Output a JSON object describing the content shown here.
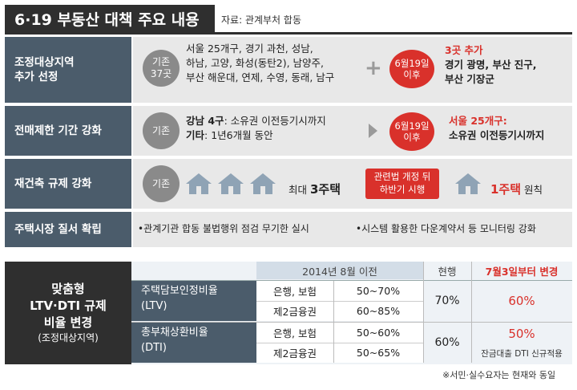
{
  "header": {
    "title": "6·19 부동산 대책 주요 내용",
    "source": "자료: 관계부처 합동"
  },
  "rows": {
    "r1": {
      "label_l1": "조정대상지역",
      "label_l2": "추가 선정",
      "existing_l1": "기존",
      "existing_l2": "37곳",
      "list_l1": "서울 25개구, 경기 과천, 성남,",
      "list_l2": "하남, 고양, 화성(동탄2), 남양주,",
      "list_l3": "부산 해운대, 연제, 수영, 동래, 남구",
      "plus": "+",
      "date_l1": "6월19일",
      "date_l2": "이후",
      "add_title": "3곳 추가",
      "add_l1": "경기 광명, 부산 진구,",
      "add_l2": "부산 기장군"
    },
    "r2": {
      "label": "전매제한 기간 강화",
      "existing": "기존",
      "line1_a": "강남 4구",
      "line1_b": ": 소유권 이전등기시까지",
      "line2_a": "기타",
      "line2_b": ": 1년6개월 동안",
      "date_l1": "6월19일",
      "date_l2": "이후",
      "new_l1": "서울 25개구:",
      "new_l2": "소유권 이전등기시까지"
    },
    "r3": {
      "label": "재건축 규제 강화",
      "existing": "기존",
      "max_a": "최대 ",
      "max_b": "3주택",
      "tag_l1": "관련법 개정 뒤",
      "tag_l2": "하반기 시행",
      "new_a": "1주택",
      "new_b": " 원칙"
    },
    "r4": {
      "label": "주택시장 질서 확립",
      "bullet1": "•관계기관 합동 불법행위 점검 무기한 실시",
      "bullet2": "•시스템 활용한 다운계약서 등 모니터링 강화"
    }
  },
  "ltv": {
    "left_l1": "맞춤형",
    "left_l2": "LTV·DTI 규제",
    "left_l3": "비율 변경",
    "left_l4": "(조정대상지역)",
    "col_prev": "2014년 8월 이전",
    "col_now": "현행",
    "col_new": "7월3일부터 변경",
    "ltv_name_l1": "주택담보인정비율",
    "ltv_name_l2": "(LTV)",
    "dti_name_l1": "총부채상환비율",
    "dti_name_l2": "(DTI)",
    "inst1": "은행, 보험",
    "inst2": "제2금융권",
    "ltv_prev1": "50~70%",
    "ltv_prev2": "60~85%",
    "ltv_now": "70%",
    "ltv_new": "60%",
    "dti_prev1": "50~60%",
    "dti_prev2": "50~65%",
    "dti_now": "60%",
    "dti_new": "50%",
    "dti_note": "잔금대출 DTI 신규적용",
    "footnote": "※서민·실수요자는 현재와 동일"
  },
  "colors": {
    "red": "#d9312b",
    "label_bg": "#4b5c6b",
    "dark": "#2f2f2f",
    "row_bg": "#e8e8e8",
    "table_bg": "#dde4ec"
  }
}
